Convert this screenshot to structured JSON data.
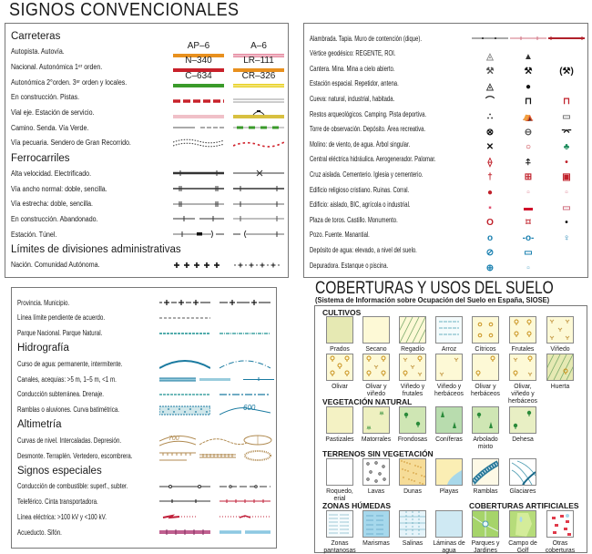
{
  "title_left": "SIGNOS CONVENCIONALES",
  "title_right": "COBERTURAS Y USOS DEL SUELO",
  "subtitle_right": "(Sistema de Información sobre Ocupación del Suelo en España, SIOSE)",
  "box1": [
    {
      "heading": "Carreteras"
    },
    {
      "label": "Autopista. Autovía.",
      "symbols": [
        {
          "code": "AP–6",
          "sym": "bar",
          "color": "#e8901e"
        },
        {
          "code": "A–6",
          "sym": "bar2",
          "color": "#e58aa0"
        }
      ]
    },
    {
      "label": "Nacional. Autonómica 1ᵉʳ orden.",
      "symbols": [
        {
          "code": "N–340",
          "sym": "bar",
          "color": "#c8202a"
        },
        {
          "code": "LR–111",
          "sym": "bar",
          "color": "#e8901e"
        }
      ]
    },
    {
      "label": "Autonómica 2°orden. 3ᵉʳ orden y locales.",
      "symbols": [
        {
          "code": "C–634",
          "sym": "bar",
          "color": "#3a9a2a"
        },
        {
          "code": "CR–326",
          "sym": "bar2",
          "color": "#e8d020"
        }
      ]
    },
    {
      "label": "En construcción. Pistas.",
      "symbols": [
        {
          "sym": "dashbar",
          "color": "#c8202a"
        },
        {
          "sym": "dbl",
          "color": "#999999"
        }
      ]
    },
    {
      "label": "Vial eje. Estación de servicio.",
      "symbols": [
        {
          "sym": "bar",
          "color": "#f0c0c8"
        },
        {
          "sym": "station",
          "color": "#d8c040"
        }
      ]
    },
    {
      "label": "Camino. Senda. Vía Verde.",
      "symbols": [
        {
          "sym": "camino",
          "color": "#aaaaaa"
        },
        {
          "sym": "senda",
          "color": "#3a9a2a"
        }
      ]
    },
    {
      "label": "Vía pecuaria. Sendero de Gran Recorrido.",
      "symbols": [
        {
          "sym": "pecuaria",
          "color": "#333333"
        },
        {
          "sym": "gr",
          "color": "#d0202a"
        }
      ]
    },
    {
      "heading": "Ferrocarriles"
    },
    {
      "label": "Alta velocidad. Electrificado.",
      "symbols": [
        {
          "sym": "railthick",
          "color": "#333333"
        },
        {
          "sym": "railx",
          "color": "#333333"
        }
      ]
    },
    {
      "label": "Vía ancho normal: doble, sencilla.",
      "symbols": [
        {
          "sym": "rail2",
          "color": "#333333"
        },
        {
          "sym": "rail1",
          "color": "#333333"
        }
      ]
    },
    {
      "label": "Vía estrecha: doble, sencilla.",
      "symbols": [
        {
          "sym": "rail2thin",
          "color": "#333333"
        },
        {
          "sym": "rail1thin",
          "color": "#333333"
        }
      ]
    },
    {
      "label": "En construcción. Abandonado.",
      "symbols": [
        {
          "sym": "railgap",
          "color": "#333333"
        },
        {
          "sym": "rail1thin",
          "color": "#555555"
        }
      ]
    },
    {
      "label": "Estación. Túnel.",
      "symbols": [
        {
          "sym": "station-rail",
          "color": "#333333"
        },
        {
          "sym": "tunnel",
          "color": "#333333"
        }
      ]
    },
    {
      "heading": "Límites de divisiones administrativas"
    },
    {
      "label": "Nación. Comunidad Autónoma.",
      "symbols": [
        {
          "sym": "plus",
          "color": "#111111"
        },
        {
          "sym": "plusdot",
          "color": "#111111"
        }
      ]
    }
  ],
  "box2": [
    {
      "label": "Alambrada. Tapia. Muro de contención (dique).",
      "symbols": [
        "fence-line",
        "wall-line",
        "dike-line"
      ]
    },
    {
      "label": "Vértice geodésico: REGENTE, ROI.",
      "symbols": [
        "geodesic-regente-icon",
        "geodesic-roi-icon"
      ]
    },
    {
      "label": "Cantera. Mina. Mina a cielo abierto.",
      "symbols": [
        "quarry-icon",
        "mine-icon",
        "open-pit-mine-icon"
      ]
    },
    {
      "label": "Estación espacial. Repetidor, antena.",
      "symbols": [
        "space-station-icon",
        "antenna-icon"
      ]
    },
    {
      "label": "Cueva: natural, industrial, habitada.",
      "symbols": [
        "cave-natural-icon",
        "cave-industrial-icon",
        "cave-inhabited-icon"
      ]
    },
    {
      "label": "Restos arqueológicos. Camping. Pista deportiva.",
      "symbols": [
        "archaeological-icon",
        "camping-icon",
        "sports-track-icon"
      ]
    },
    {
      "label": "Torre de observación. Depósito. Área recreativa.",
      "symbols": [
        "watchtower-icon",
        "tank-icon",
        "recreation-area-icon"
      ]
    },
    {
      "label": "Molino: de viento, de agua. Árbol singular.",
      "symbols": [
        "windmill-icon",
        "watermill-icon",
        "singular-tree-icon"
      ]
    },
    {
      "label": "Central eléctrica hidráulica. Aerogenerador. Palomar.",
      "symbols": [
        "hydro-plant-icon",
        "wind-turbine-icon",
        "dovecote-icon"
      ]
    },
    {
      "label": "Cruz aislada. Cementerio. Iglesia y cementerio.",
      "symbols": [
        "cross-icon",
        "cemetery-icon",
        "church-cemetery-icon"
      ]
    },
    {
      "label": "Edificio religioso cristiano. Ruinas. Corral.",
      "symbols": [
        "church-icon",
        "ruins-icon",
        "corral-icon"
      ]
    },
    {
      "label": "Edificio: aislado, BIC, agrícola o industrial.",
      "symbols": [
        "building-icon",
        "bic-building-icon",
        "industrial-building-icon"
      ]
    },
    {
      "label": "Plaza de toros. Castillo. Monumento.",
      "symbols": [
        "bullring-icon",
        "castle-icon",
        "monument-icon"
      ]
    },
    {
      "label": "Pozo. Fuente. Manantial.",
      "symbols": [
        "well-icon",
        "fountain-icon",
        "spring-icon"
      ]
    },
    {
      "label": "Depósito de agua: elevado, a nivel del suelo.",
      "symbols": [
        "water-tower-icon",
        "ground-tank-icon"
      ]
    },
    {
      "label": "Depuradora. Estanque o piscina.",
      "symbols": [
        "treatment-plant-icon",
        "pool-icon"
      ]
    }
  ],
  "box3": [
    {
      "label": "Provincia. Municipio.",
      "symbols": [
        "province-line",
        "municipality-line"
      ]
    },
    {
      "label": "Línea límite pendiente de acuerdo.",
      "symbols": [
        "pending-line"
      ]
    },
    {
      "label": "Parque Nacional. Parque Natural.",
      "symbols": [
        "national-park-line",
        "natural-park-line"
      ]
    },
    {
      "heading": "Hidrografía"
    },
    {
      "label": "Curso de agua: permanente, intermitente.",
      "symbols": [
        "river-permanent",
        "river-intermittent"
      ]
    },
    {
      "label": "Canales, acequias: >5 m, 1–5 m, <1 m.",
      "symbols": [
        "canal-wide",
        "canal-mid",
        "canal-narrow"
      ]
    },
    {
      "label": "Conducción subterránea. Drenaje.",
      "symbols": [
        "underground-pipe",
        "drainage"
      ]
    },
    {
      "label": "Ramblas o aluviones. Curva batimétrica.",
      "symbols": [
        "rambla",
        "bathymetric"
      ],
      "bathymetric_value": "600"
    },
    {
      "heading": "Altimetría"
    },
    {
      "label": "Curvas de nivel. Intercaladas. Depresión.",
      "symbols": [
        "contour",
        "contour-intermediate",
        "depression"
      ],
      "contour_value": "700"
    },
    {
      "label": "Desmonte. Terraplén. Vertedero, escombrera.",
      "symbols": [
        "cutting",
        "embankment",
        "dump"
      ]
    },
    {
      "heading": "Signos especiales"
    },
    {
      "label": "Conducción de combustible: superf., subter.",
      "symbols": [
        "fuel-surface",
        "fuel-underground"
      ]
    },
    {
      "label": "Teleférico. Cinta transportadora.",
      "symbols": [
        "cable-car",
        "conveyor"
      ]
    },
    {
      "label": "Línea eléctrica: >100 kV y <100 kV.",
      "symbols": [
        "power-high",
        "power-low"
      ]
    },
    {
      "label": "Acueducto. Sifón.",
      "symbols": [
        "aqueduct",
        "siphon"
      ]
    }
  ],
  "land_cover": {
    "groups": [
      {
        "heading": "CULTIVOS",
        "rows": [
          [
            {
              "name": "Prados",
              "pattern": "prados"
            },
            {
              "name": "Secano",
              "pattern": "secano"
            },
            {
              "name": "Regadío",
              "pattern": "regadio"
            },
            {
              "name": "Arroz",
              "pattern": "arroz"
            },
            {
              "name": "Cítricos",
              "pattern": "citricos"
            },
            {
              "name": "Frutales",
              "pattern": "frutales"
            },
            {
              "name": "Viñedo",
              "pattern": "vinedo"
            }
          ],
          [
            {
              "name": "Olivar",
              "pattern": "olivar"
            },
            {
              "name": "Olivar y viñedo",
              "pattern": "olivar-vinedo"
            },
            {
              "name": "Viñedo y frutales",
              "pattern": "vinedo-frutales"
            },
            {
              "name": "Viñedo y herbáceos",
              "pattern": "vinedo-herb"
            },
            {
              "name": "Olivar y herbáceos",
              "pattern": "olivar-herb"
            },
            {
              "name": "Olivar, viñedo y herbáceos",
              "pattern": "olivar-vinedo-herb"
            },
            {
              "name": "Huerta",
              "pattern": "huerta"
            }
          ]
        ]
      },
      {
        "heading": "VEGETACIÓN NATURAL",
        "rows": [
          [
            {
              "name": "Pastizales",
              "pattern": "pastizales"
            },
            {
              "name": "Matorrales",
              "pattern": "matorrales"
            },
            {
              "name": "Frondosas",
              "pattern": "frondosas"
            },
            {
              "name": "Coníferas",
              "pattern": "coniferas"
            },
            {
              "name": "Arbolado mixto",
              "pattern": "mixto"
            },
            {
              "name": "Dehesa",
              "pattern": "dehesa"
            }
          ]
        ]
      },
      {
        "heading": "TERRENOS SIN VEGETACIÓN",
        "rows": [
          [
            {
              "name": "Roquedo, erial",
              "pattern": "roquedo"
            },
            {
              "name": "Lavas",
              "pattern": "lavas"
            },
            {
              "name": "Dunas",
              "pattern": "dunas"
            },
            {
              "name": "Playas",
              "pattern": "playas"
            },
            {
              "name": "Ramblas",
              "pattern": "ramblas"
            },
            {
              "name": "Glaciares",
              "pattern": "glaciares"
            }
          ]
        ]
      },
      {
        "heading": "ZONAS HÚMEDAS",
        "heading2": "COBERTURAS ARTIFICIALES",
        "rows": [
          [
            {
              "name": "Zonas pantanosas",
              "pattern": "pantanosas"
            },
            {
              "name": "Marismas",
              "pattern": "marismas"
            },
            {
              "name": "Salinas",
              "pattern": "salinas"
            },
            {
              "name": "Láminas de agua",
              "pattern": "agua"
            },
            {
              "name": "Parques y Jardines",
              "pattern": "parques"
            },
            {
              "name": "Campo de Golf",
              "pattern": "golf"
            },
            {
              "name": "Otras coberturas",
              "pattern": "otras"
            }
          ]
        ]
      }
    ]
  }
}
